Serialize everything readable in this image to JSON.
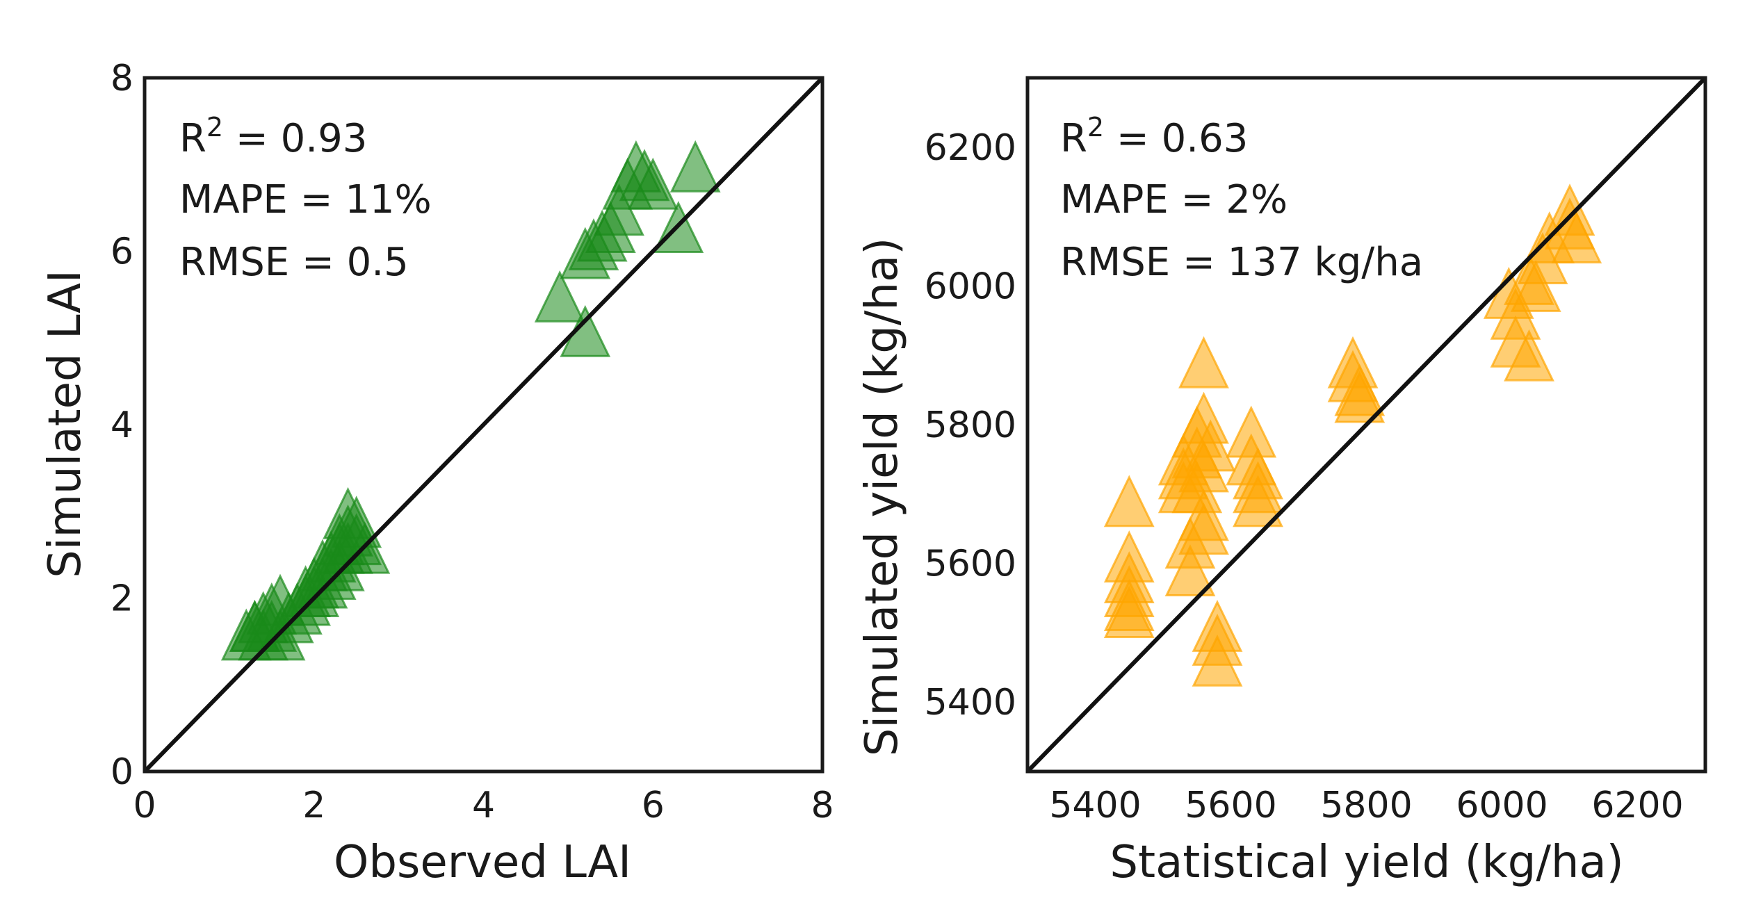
{
  "chart_data": [
    {
      "type": "scatter",
      "title": "",
      "xlabel": "Observed LAI",
      "ylabel": "Simulated LAI",
      "xlim": [
        0,
        8
      ],
      "ylim": [
        0,
        8
      ],
      "xticks": [
        "0",
        "2",
        "4",
        "6",
        "8"
      ],
      "yticks": [
        "0",
        "2",
        "4",
        "6",
        "8"
      ],
      "grid": false,
      "marker": "triangle",
      "color": "#1a8a1a",
      "one_to_one_line": true,
      "annotations": {
        "r2_prefix": "R",
        "r2_sup": "2",
        "r2_value": " = 0.93",
        "mape": "MAPE = 11%",
        "rmse": "RMSE = 0.5"
      },
      "series": [
        {
          "x": [
            1.2,
            1.3,
            1.4,
            1.5,
            1.6,
            1.4,
            1.5,
            1.7,
            1.8,
            1.3,
            1.6,
            1.9,
            2.0,
            2.1,
            2.2,
            1.9,
            2.0,
            2.3,
            2.4,
            2.5,
            2.2,
            2.3,
            2.4,
            2.5,
            2.6,
            2.1,
            2.3,
            2.4,
            4.9,
            5.2,
            5.3,
            5.4,
            5.5,
            5.2,
            5.6,
            5.7,
            5.8,
            5.9,
            6.0,
            6.3,
            6.5
          ],
          "y": [
            1.5,
            1.6,
            1.7,
            1.8,
            1.9,
            1.5,
            1.6,
            1.7,
            1.8,
            1.6,
            1.5,
            1.9,
            2.0,
            2.1,
            2.2,
            2.0,
            2.1,
            2.3,
            2.5,
            2.6,
            2.4,
            2.5,
            2.7,
            2.8,
            2.5,
            2.3,
            2.6,
            2.9,
            5.4,
            5.0,
            6.0,
            6.1,
            6.2,
            5.9,
            6.4,
            6.7,
            6.9,
            6.8,
            6.7,
            6.2,
            6.9
          ]
        }
      ]
    },
    {
      "type": "scatter",
      "title": "",
      "xlabel": "Statistical yield (kg/ha)",
      "ylabel": "Simulated yield (kg/ha)",
      "xlim": [
        5300,
        6300
      ],
      "ylim": [
        5300,
        6300
      ],
      "xticks": [
        "5400",
        "5600",
        "5800",
        "6000",
        "6200"
      ],
      "yticks": [
        "5400",
        "5600",
        "5800",
        "6000",
        "6200"
      ],
      "grid": false,
      "marker": "triangle",
      "color": "#ffa500",
      "one_to_one_line": true,
      "annotations": {
        "r2_prefix": "R",
        "r2_sup": "2",
        "r2_value": " = 0.63",
        "mape": "MAPE = 2%",
        "rmse": "RMSE = 137 kg/ha"
      },
      "series": [
        {
          "x": [
            5450,
            5450,
            5450,
            5450,
            5450,
            5450,
            5530,
            5530,
            5530,
            5540,
            5540,
            5550,
            5550,
            5550,
            5560,
            5560,
            5560,
            5570,
            5560,
            5560,
            5580,
            5580,
            5580,
            5630,
            5630,
            5640,
            5640,
            5640,
            5780,
            5780,
            5790,
            5790,
            6010,
            6020,
            6020,
            6040,
            6040,
            6050,
            6060,
            6070,
            6100,
            6100,
            6110
          ],
          "y": [
            5680,
            5600,
            5570,
            5550,
            5530,
            5520,
            5740,
            5720,
            5700,
            5620,
            5580,
            5780,
            5750,
            5700,
            5660,
            5640,
            5800,
            5760,
            5880,
            5730,
            5500,
            5480,
            5450,
            5780,
            5740,
            5720,
            5700,
            5680,
            5880,
            5860,
            5840,
            5830,
            5980,
            5950,
            5910,
            6000,
            5890,
            5990,
            6030,
            6060,
            6100,
            6080,
            6060
          ]
        }
      ]
    }
  ]
}
